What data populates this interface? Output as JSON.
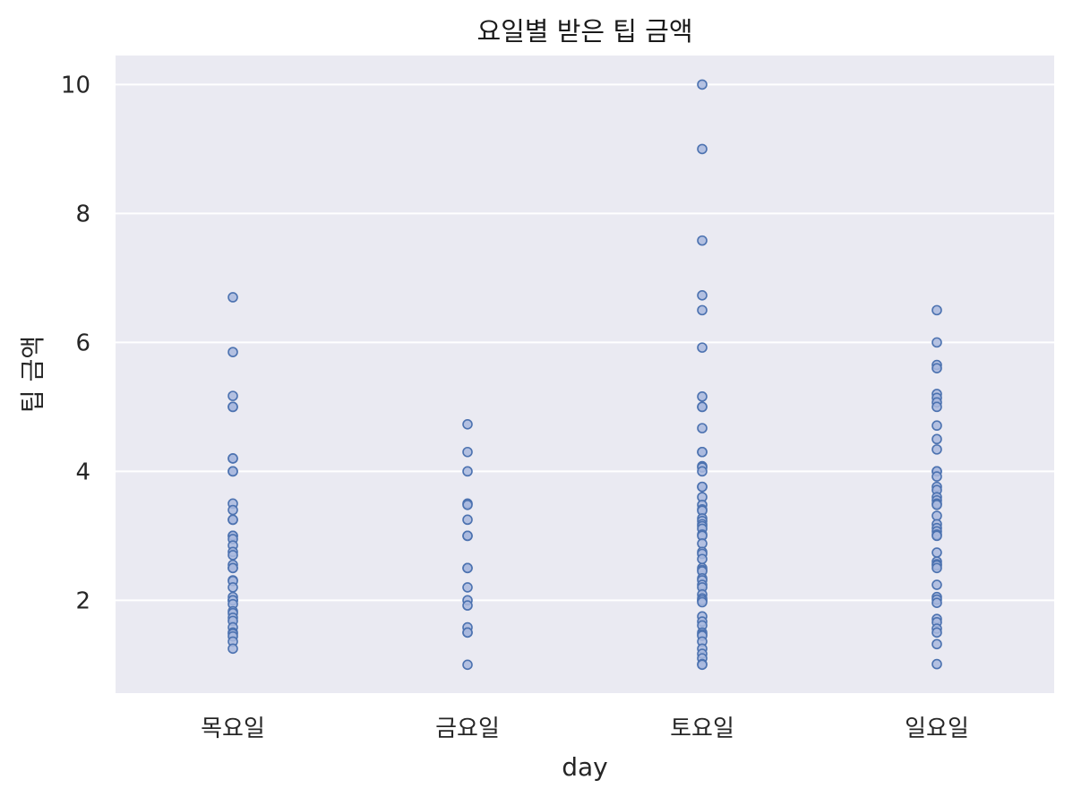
{
  "chart_data": {
    "type": "scatter",
    "title": "요일별 받은 팁 금액",
    "xlabel": "day",
    "ylabel": "팁 금액",
    "categories": [
      "목요일",
      "금요일",
      "토요일",
      "일요일"
    ],
    "ylim": [
      0.56,
      10.45
    ],
    "yticks": [
      "2",
      "4",
      "6",
      "8",
      "10"
    ],
    "grid": true,
    "background": "#eaeaf2",
    "marker_fill": "#a9b8de",
    "marker_edge": "#4c72b0",
    "series": [
      {
        "category": "목요일",
        "values": [
          6.7,
          5.85,
          5.17,
          5.0,
          5.0,
          4.2,
          4.2,
          4.0,
          4.0,
          3.5,
          3.4,
          3.25,
          3.25,
          3.0,
          3.0,
          2.95,
          2.85,
          2.75,
          2.7,
          2.55,
          2.5,
          2.5,
          2.31,
          2.3,
          2.2,
          2.05,
          2.0,
          2.0,
          2.0,
          1.94,
          1.83,
          1.8,
          1.73,
          1.68,
          1.58,
          1.5,
          1.48,
          1.44,
          1.36,
          1.25
        ]
      },
      {
        "category": "금요일",
        "values": [
          4.73,
          4.3,
          4.0,
          3.5,
          3.48,
          3.25,
          3.0,
          3.0,
          2.5,
          2.5,
          2.2,
          2.0,
          1.92,
          1.58,
          1.5,
          1.5,
          1.0
        ]
      },
      {
        "category": "토요일",
        "values": [
          10.0,
          9.0,
          7.58,
          6.73,
          6.5,
          5.92,
          5.16,
          5.0,
          5.0,
          4.67,
          4.3,
          4.3,
          4.08,
          4.06,
          4.0,
          3.76,
          3.76,
          3.6,
          3.48,
          3.41,
          3.39,
          3.27,
          3.23,
          3.18,
          3.15,
          3.11,
          3.02,
          3.0,
          2.88,
          2.75,
          2.72,
          2.64,
          2.5,
          2.47,
          2.45,
          2.34,
          2.31,
          2.24,
          2.2,
          2.09,
          2.03,
          2.0,
          2.0,
          1.97,
          1.75,
          1.67,
          1.61,
          1.5,
          1.47,
          1.45,
          1.36,
          1.25,
          1.17,
          1.1,
          1.01,
          1.0
        ]
      },
      {
        "category": "일요일",
        "values": [
          6.5,
          6.0,
          5.65,
          5.6,
          5.2,
          5.14,
          5.07,
          5.0,
          4.71,
          4.5,
          4.34,
          4.0,
          4.0,
          3.92,
          3.76,
          3.71,
          3.6,
          3.55,
          3.5,
          3.48,
          3.31,
          3.18,
          3.12,
          3.07,
          3.02,
          3.0,
          2.74,
          2.6,
          2.56,
          2.54,
          2.5,
          2.24,
          2.05,
          2.01,
          1.96,
          1.71,
          1.66,
          1.56,
          1.5,
          1.32,
          1.01
        ]
      }
    ]
  }
}
